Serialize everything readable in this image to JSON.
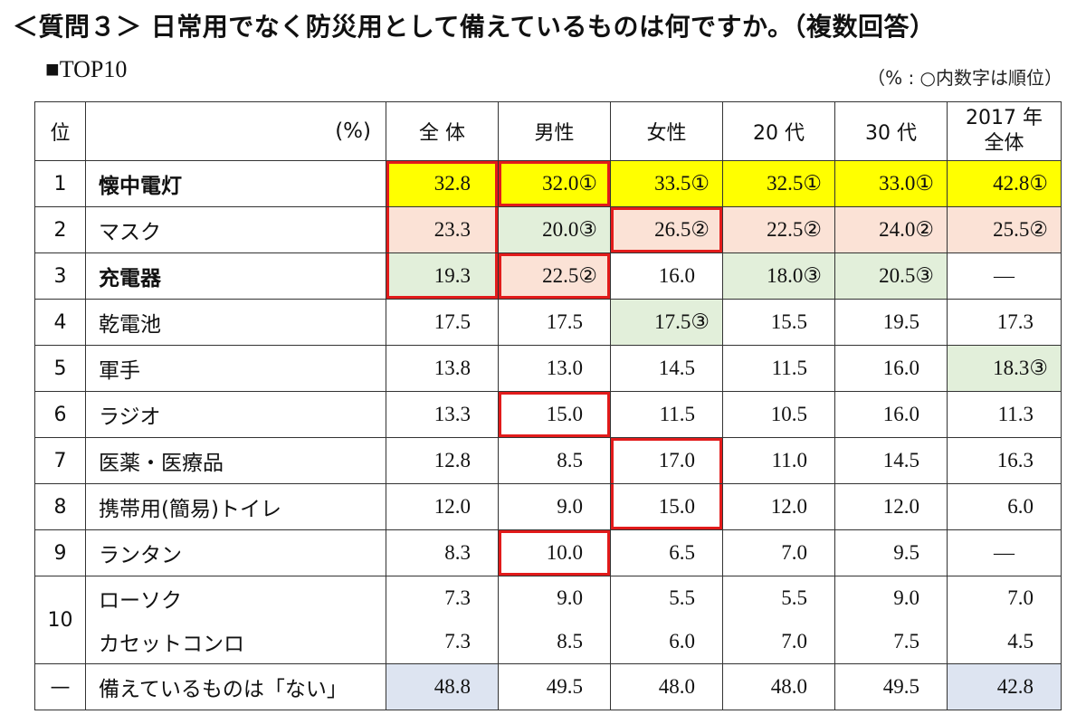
{
  "title": "＜質問３＞ 日常用でなく防災用として備えているものは何ですか。（複数回答）",
  "subtitle": "■TOP10",
  "note": "（% : ○内数字は順位）",
  "headers": {
    "rank": "位",
    "item": "(%)",
    "all": "全 体",
    "male": "男性",
    "female": "女性",
    "twenties": "20 代",
    "thirties": "30 代",
    "y2017_line1": "2017 年",
    "y2017_line2": "全体"
  },
  "rows": [
    {
      "rank": "1",
      "item": "懐中電灯",
      "v": [
        "32.8",
        "32.0①",
        "33.5①",
        "32.5①",
        "33.0①",
        "42.8①"
      ]
    },
    {
      "rank": "2",
      "item": "マスク",
      "v": [
        "23.3",
        "20.0③",
        "26.5②",
        "22.5②",
        "24.0②",
        "25.5②"
      ]
    },
    {
      "rank": "3",
      "item": "充電器",
      "v": [
        "19.3",
        "22.5②",
        "16.0",
        "18.0③",
        "20.5③",
        "—"
      ]
    },
    {
      "rank": "4",
      "item": "乾電池",
      "v": [
        "17.5",
        "17.5",
        "17.5③",
        "15.5",
        "19.5",
        "17.3"
      ]
    },
    {
      "rank": "5",
      "item": "軍手",
      "v": [
        "13.8",
        "13.0",
        "14.5",
        "11.5",
        "16.0",
        "18.3③"
      ]
    },
    {
      "rank": "6",
      "item": "ラジオ",
      "v": [
        "13.3",
        "15.0",
        "11.5",
        "10.5",
        "16.0",
        "11.3"
      ]
    },
    {
      "rank": "7",
      "item": "医薬・医療品",
      "v": [
        "12.8",
        "8.5",
        "17.0",
        "11.0",
        "14.5",
        "16.3"
      ]
    },
    {
      "rank": "8",
      "item": "携帯用(簡易)トイレ",
      "v": [
        "12.0",
        "9.0",
        "15.0",
        "12.0",
        "12.0",
        "6.0"
      ]
    },
    {
      "rank": "9",
      "item": "ランタン",
      "v": [
        "8.3",
        "10.0",
        "6.5",
        "7.0",
        "9.5",
        "—"
      ]
    },
    {
      "rank": "10",
      "item": "ローソク",
      "v": [
        "7.3",
        "9.0",
        "5.5",
        "5.5",
        "9.0",
        "7.0"
      ]
    },
    {
      "rank": "",
      "item": "カセットコンロ",
      "v": [
        "7.3",
        "8.5",
        "6.0",
        "7.0",
        "7.5",
        "4.5"
      ]
    },
    {
      "rank": "—",
      "item": "備えているものは「ない」",
      "v": [
        "48.8",
        "49.5",
        "48.0",
        "48.0",
        "49.5",
        "42.8"
      ]
    }
  ]
}
